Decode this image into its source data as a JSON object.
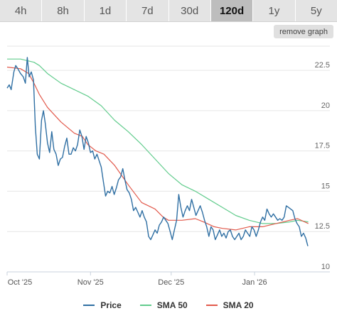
{
  "tabs": [
    {
      "label": "4h",
      "active": false
    },
    {
      "label": "8h",
      "active": false
    },
    {
      "label": "1d",
      "active": false
    },
    {
      "label": "7d",
      "active": false
    },
    {
      "label": "30d",
      "active": false
    },
    {
      "label": "120d",
      "active": true
    },
    {
      "label": "1y",
      "active": false
    },
    {
      "label": "5y",
      "active": false
    }
  ],
  "remove_graph_label": "remove graph",
  "colors": {
    "price": "#2f6fa3",
    "sma50": "#62cc8d",
    "sma20": "#e25a4c",
    "grid": "#e6e6e6",
    "axis": "#c8d2dc"
  },
  "chart_data": {
    "type": "line",
    "xlim": [
      0,
      120
    ],
    "ylim": [
      10,
      24
    ],
    "y_ticks": [
      {
        "value": 10,
        "label": "10"
      },
      {
        "value": 12.5,
        "label": "12.5"
      },
      {
        "value": 15,
        "label": "15"
      },
      {
        "value": 17.5,
        "label": "17.5"
      },
      {
        "value": 20,
        "label": "20"
      },
      {
        "value": 22.5,
        "label": "22.5"
      }
    ],
    "x_ticks": [
      {
        "value": 0,
        "label": "Oct '25"
      },
      {
        "value": 31,
        "label": "Nov '25"
      },
      {
        "value": 61,
        "label": "Dec '25"
      },
      {
        "value": 92,
        "label": "Jan '26"
      }
    ],
    "legend": [
      "Price",
      "SMA 50",
      "SMA 20"
    ],
    "legend_position": "bottom",
    "series": [
      {
        "name": "Price",
        "points": [
          [
            0,
            21.4
          ],
          [
            0.8,
            21.6
          ],
          [
            1.5,
            21.3
          ],
          [
            2.5,
            22.4
          ],
          [
            3.2,
            22.8
          ],
          [
            4,
            22.6
          ],
          [
            5,
            22.3
          ],
          [
            6,
            22.1
          ],
          [
            6.8,
            21.7
          ],
          [
            7.5,
            23.3
          ],
          [
            8.2,
            22.1
          ],
          [
            9,
            22.4
          ],
          [
            9.8,
            21.9
          ],
          [
            10.5,
            19.0
          ],
          [
            11.2,
            17.3
          ],
          [
            12,
            17.0
          ],
          [
            12.8,
            19.4
          ],
          [
            13.5,
            20.0
          ],
          [
            14.2,
            19.2
          ],
          [
            15,
            18.0
          ],
          [
            15.8,
            17.4
          ],
          [
            16.6,
            18.7
          ],
          [
            17.4,
            17.6
          ],
          [
            18.2,
            17.3
          ],
          [
            19,
            16.6
          ],
          [
            19.8,
            17.0
          ],
          [
            20.6,
            17.1
          ],
          [
            21.4,
            17.8
          ],
          [
            22.2,
            18.3
          ],
          [
            23,
            17.3
          ],
          [
            23.8,
            17.3
          ],
          [
            24.6,
            17.7
          ],
          [
            25.4,
            17.5
          ],
          [
            26.2,
            17.9
          ],
          [
            27,
            18.8
          ],
          [
            27.8,
            18.4
          ],
          [
            28.6,
            17.6
          ],
          [
            29.4,
            18.4
          ],
          [
            30.2,
            18.0
          ],
          [
            31,
            17.4
          ],
          [
            31.8,
            17.5
          ],
          [
            32.6,
            17.0
          ],
          [
            33.4,
            17.3
          ],
          [
            34.2,
            16.9
          ],
          [
            35,
            16.5
          ],
          [
            35.8,
            15.6
          ],
          [
            36.6,
            14.7
          ],
          [
            37.4,
            15.0
          ],
          [
            38.2,
            14.9
          ],
          [
            39,
            15.3
          ],
          [
            39.8,
            14.8
          ],
          [
            40.6,
            15.2
          ],
          [
            41.4,
            15.7
          ],
          [
            42.2,
            15.9
          ],
          [
            43,
            16.4
          ],
          [
            43.8,
            15.7
          ],
          [
            44.6,
            15.1
          ],
          [
            45.4,
            14.9
          ],
          [
            46.2,
            14.5
          ],
          [
            47,
            13.8
          ],
          [
            47.8,
            14.0
          ],
          [
            48.6,
            13.7
          ],
          [
            49.4,
            13.4
          ],
          [
            50.2,
            13.8
          ],
          [
            51,
            13.4
          ],
          [
            51.8,
            13.1
          ],
          [
            52.6,
            12.2
          ],
          [
            53.4,
            12.0
          ],
          [
            54.2,
            12.3
          ],
          [
            55,
            12.6
          ],
          [
            55.8,
            12.4
          ],
          [
            56.6,
            12.9
          ],
          [
            57.4,
            13.1
          ],
          [
            58.2,
            13.4
          ],
          [
            59,
            13.2
          ],
          [
            59.8,
            13.0
          ],
          [
            60.6,
            12.5
          ],
          [
            61.4,
            12.0
          ],
          [
            62.2,
            12.6
          ],
          [
            63,
            13.2
          ],
          [
            63.8,
            14.8
          ],
          [
            64.6,
            14.0
          ],
          [
            65.4,
            13.4
          ],
          [
            66.2,
            13.8
          ],
          [
            67,
            14.1
          ],
          [
            67.8,
            13.8
          ],
          [
            68.6,
            14.5
          ],
          [
            69.4,
            14.0
          ],
          [
            70.2,
            13.5
          ],
          [
            71,
            13.8
          ],
          [
            71.8,
            14.1
          ],
          [
            72.6,
            13.7
          ],
          [
            73.4,
            13.2
          ],
          [
            74.2,
            12.8
          ],
          [
            75,
            12.2
          ],
          [
            75.8,
            12.8
          ],
          [
            76.6,
            12.6
          ],
          [
            77.4,
            12.0
          ],
          [
            78.2,
            12.3
          ],
          [
            79,
            12.6
          ],
          [
            79.8,
            12.2
          ],
          [
            80.6,
            12.4
          ],
          [
            81.4,
            12.1
          ],
          [
            82.2,
            12.5
          ],
          [
            83,
            12.6
          ],
          [
            83.8,
            12.2
          ],
          [
            84.6,
            12.0
          ],
          [
            85.4,
            12.2
          ],
          [
            86.2,
            12.4
          ],
          [
            87,
            12.0
          ],
          [
            87.8,
            12.2
          ],
          [
            88.6,
            12.6
          ],
          [
            89.4,
            12.4
          ],
          [
            90.2,
            12.2
          ],
          [
            91,
            12.8
          ],
          [
            91.8,
            12.6
          ],
          [
            92.6,
            12.2
          ],
          [
            93.4,
            12.6
          ],
          [
            94.2,
            13.1
          ],
          [
            95,
            13.4
          ],
          [
            95.8,
            13.2
          ],
          [
            96.6,
            13.9
          ],
          [
            97.4,
            13.6
          ],
          [
            98.2,
            13.4
          ],
          [
            99,
            13.6
          ],
          [
            99.8,
            13.4
          ],
          [
            100.6,
            13.2
          ],
          [
            101.4,
            13.3
          ],
          [
            102.2,
            13.2
          ],
          [
            103,
            13.4
          ],
          [
            103.8,
            14.1
          ],
          [
            104.6,
            14.0
          ],
          [
            105.4,
            13.9
          ],
          [
            106.2,
            13.8
          ],
          [
            107,
            13.3
          ],
          [
            107.8,
            13.0
          ],
          [
            108.6,
            12.8
          ],
          [
            109.4,
            12.2
          ],
          [
            110.2,
            12.4
          ],
          [
            111,
            12.1
          ],
          [
            111.8,
            11.6
          ]
        ]
      },
      {
        "name": "SMA 50",
        "points": [
          [
            0,
            23.2
          ],
          [
            5,
            23.2
          ],
          [
            10,
            23.0
          ],
          [
            12,
            22.8
          ],
          [
            15,
            22.3
          ],
          [
            20,
            21.7
          ],
          [
            25,
            21.3
          ],
          [
            30,
            20.9
          ],
          [
            35,
            20.3
          ],
          [
            40,
            19.4
          ],
          [
            45,
            18.7
          ],
          [
            50,
            17.9
          ],
          [
            55,
            17.0
          ],
          [
            60,
            16.1
          ],
          [
            65,
            15.4
          ],
          [
            70,
            15.0
          ],
          [
            75,
            14.5
          ],
          [
            80,
            14.0
          ],
          [
            85,
            13.5
          ],
          [
            90,
            13.2
          ],
          [
            95,
            13.0
          ],
          [
            100,
            13.0
          ],
          [
            105,
            13.1
          ],
          [
            108,
            13.2
          ],
          [
            112,
            13.1
          ]
        ]
      },
      {
        "name": "SMA 20",
        "points": [
          [
            0,
            22.7
          ],
          [
            5,
            22.6
          ],
          [
            8,
            22.3
          ],
          [
            10,
            21.7
          ],
          [
            12,
            21.0
          ],
          [
            15,
            20.2
          ],
          [
            20,
            19.3
          ],
          [
            25,
            18.6
          ],
          [
            28,
            18.4
          ],
          [
            30,
            17.9
          ],
          [
            33,
            17.5
          ],
          [
            36,
            17.3
          ],
          [
            40,
            16.6
          ],
          [
            45,
            15.4
          ],
          [
            50,
            14.3
          ],
          [
            55,
            13.9
          ],
          [
            58,
            13.4
          ],
          [
            60,
            13.2
          ],
          [
            65,
            13.2
          ],
          [
            70,
            13.3
          ],
          [
            73,
            13.1
          ],
          [
            77,
            12.8
          ],
          [
            80,
            12.7
          ],
          [
            85,
            12.6
          ],
          [
            90,
            12.8
          ],
          [
            95,
            12.8
          ],
          [
            100,
            13.0
          ],
          [
            105,
            13.2
          ],
          [
            108,
            13.3
          ],
          [
            112,
            13.0
          ]
        ]
      }
    ]
  }
}
